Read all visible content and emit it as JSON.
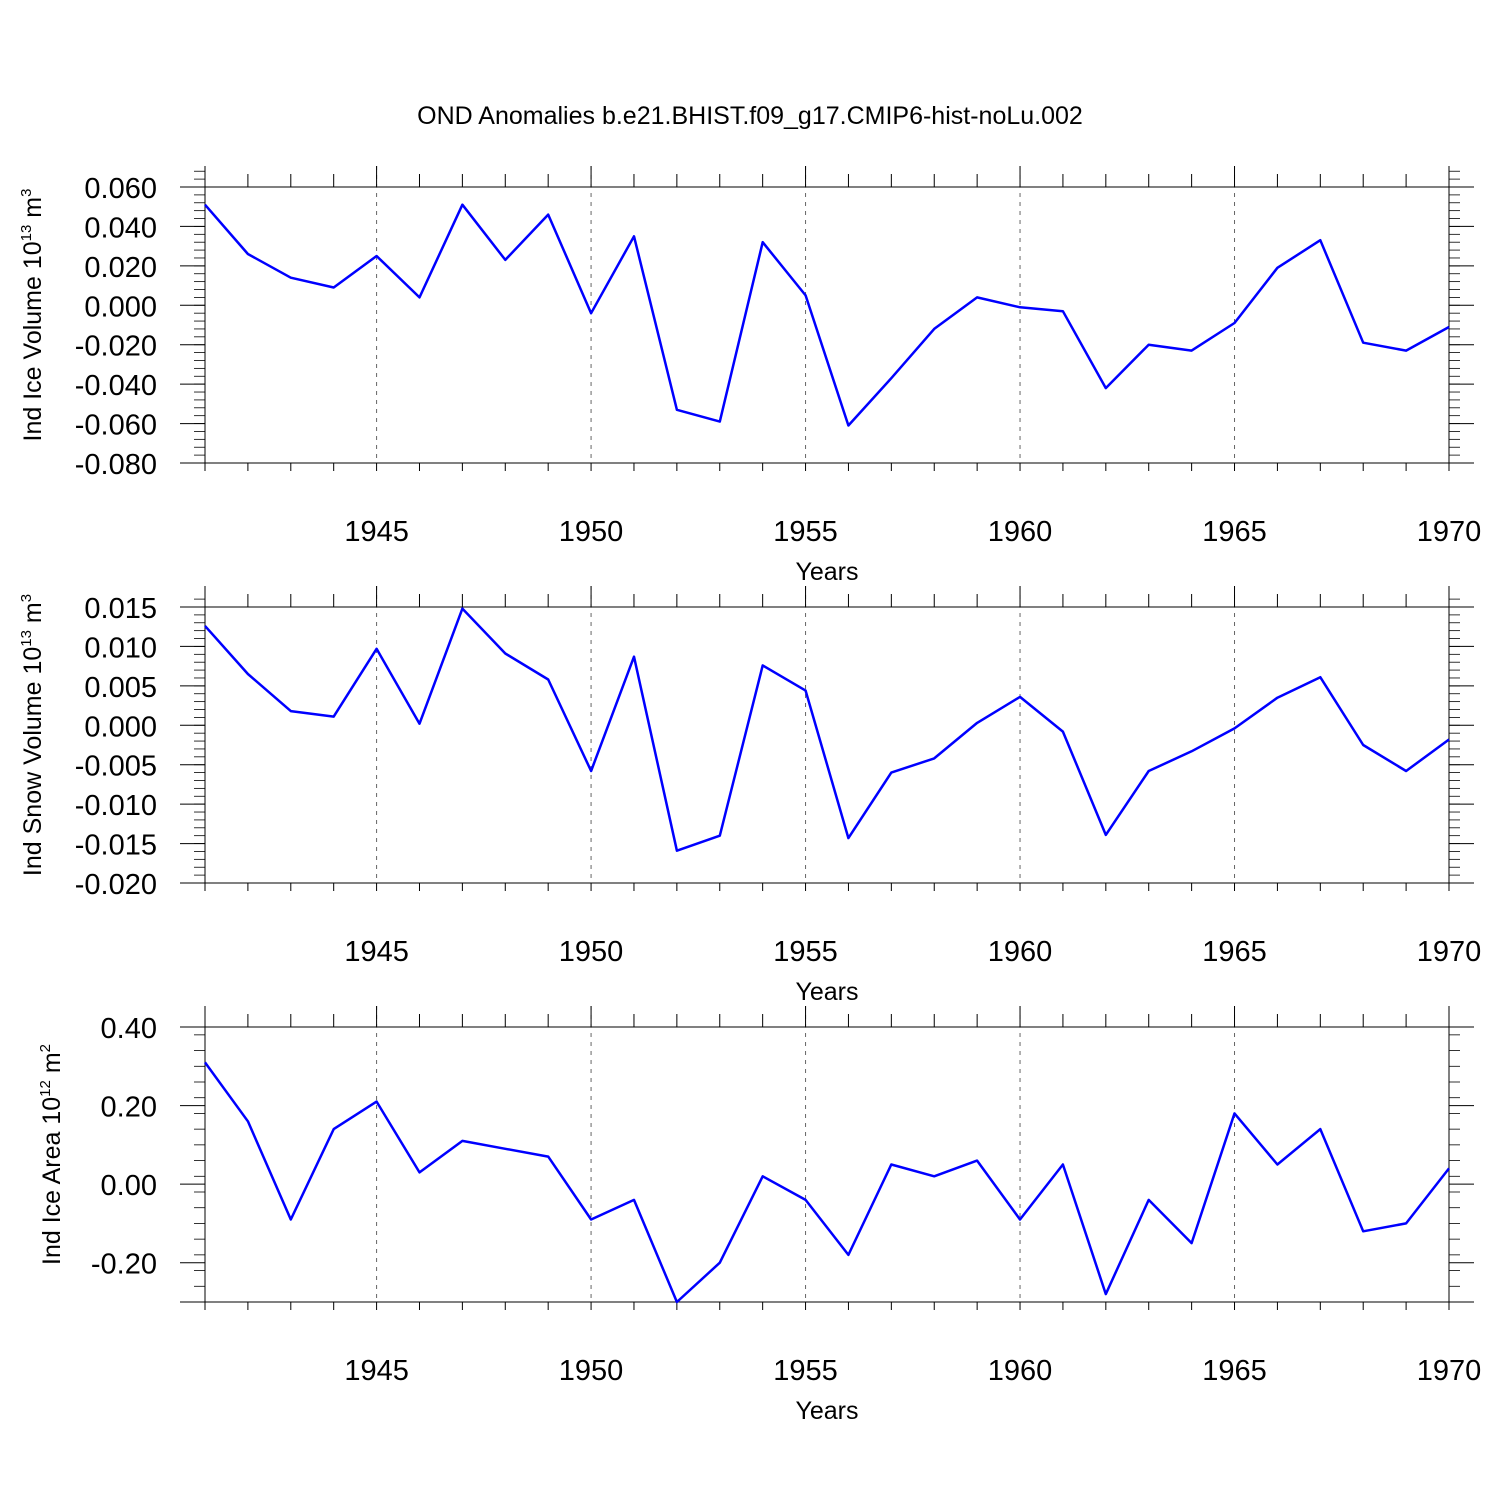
{
  "title": "OND Anomalies b.e21.BHIST.f09_g17.CMIP6-hist-noLu.002",
  "line_color": "#0000ff",
  "chart_data": [
    {
      "type": "line",
      "ylabel_main": "Ind Ice Volume 10",
      "ylabel_exp": "13",
      "ylabel_unit": " m",
      "ylabel_unit_exp": "3",
      "xlabel": "Years",
      "xlim": [
        1941,
        1970
      ],
      "ylim": [
        -0.08,
        0.07
      ],
      "yticks": [
        "0.060",
        "0.040",
        "0.020",
        "0.000",
        "-0.020",
        "-0.040",
        "-0.060",
        "-0.080"
      ],
      "xticks": [
        "1945",
        "1950",
        "1955",
        "1960",
        "1965",
        "1970"
      ],
      "x": [
        1941,
        1942,
        1943,
        1944,
        1945,
        1946,
        1947,
        1948,
        1949,
        1950,
        1951,
        1952,
        1953,
        1954,
        1955,
        1956,
        1957,
        1958,
        1959,
        1960,
        1961,
        1962,
        1963,
        1964,
        1965,
        1966,
        1967,
        1968,
        1969,
        1970
      ],
      "y": [
        0.051,
        0.026,
        0.014,
        0.009,
        0.025,
        0.004,
        0.051,
        0.023,
        0.046,
        -0.004,
        0.035,
        -0.053,
        -0.059,
        0.032,
        0.005,
        -0.061,
        -0.037,
        -0.012,
        0.004,
        -0.001,
        -0.003,
        -0.042,
        -0.02,
        -0.023,
        -0.009,
        0.019,
        0.033,
        -0.019,
        -0.023,
        -0.011
      ]
    },
    {
      "type": "line",
      "ylabel_main": "Ind Snow Volume 10",
      "ylabel_exp": "13",
      "ylabel_unit": " m",
      "ylabel_unit_exp": "3",
      "xlabel": "Years",
      "xlim": [
        1941,
        1970
      ],
      "ylim": [
        -0.02,
        0.0165
      ],
      "yticks": [
        "0.015",
        "0.010",
        "0.005",
        "0.000",
        "-0.005",
        "-0.010",
        "-0.015",
        "-0.020"
      ],
      "xticks": [
        "1945",
        "1950",
        "1955",
        "1960",
        "1965",
        "1970"
      ],
      "x": [
        1941,
        1942,
        1943,
        1944,
        1945,
        1946,
        1947,
        1948,
        1949,
        1950,
        1951,
        1952,
        1953,
        1954,
        1955,
        1956,
        1957,
        1958,
        1959,
        1960,
        1961,
        1962,
        1963,
        1964,
        1965,
        1966,
        1967,
        1968,
        1969,
        1970
      ],
      "y": [
        0.0126,
        0.0065,
        0.0018,
        0.0011,
        0.0097,
        0.0002,
        0.0148,
        0.0091,
        0.0058,
        -0.0058,
        0.0087,
        -0.0159,
        -0.014,
        0.0076,
        0.0044,
        -0.0143,
        -0.006,
        -0.0042,
        0.0003,
        0.0036,
        -0.0008,
        -0.0139,
        -0.0058,
        -0.0033,
        -0.0004,
        0.0035,
        0.0061,
        -0.0025,
        -0.0058,
        -0.0018
      ]
    },
    {
      "type": "line",
      "ylabel_main": "Ind Ice Area 10",
      "ylabel_exp": "12",
      "ylabel_unit": " m",
      "ylabel_unit_exp": "2",
      "xlabel": "Years",
      "xlim": [
        1941,
        1970
      ],
      "ylim": [
        -0.3,
        0.4
      ],
      "yticks": [
        "0.40",
        "0.20",
        "0.00",
        "-0.20"
      ],
      "xticks": [
        "1945",
        "1950",
        "1955",
        "1960",
        "1965",
        "1970"
      ],
      "x": [
        1941,
        1942,
        1943,
        1944,
        1945,
        1946,
        1947,
        1948,
        1949,
        1950,
        1951,
        1952,
        1953,
        1954,
        1955,
        1956,
        1957,
        1958,
        1959,
        1960,
        1961,
        1962,
        1963,
        1964,
        1965,
        1966,
        1967,
        1968,
        1969,
        1970
      ],
      "y": [
        0.31,
        0.16,
        -0.09,
        0.14,
        0.21,
        0.03,
        0.11,
        0.09,
        0.07,
        -0.09,
        -0.04,
        -0.3,
        -0.2,
        0.02,
        -0.04,
        -0.18,
        0.05,
        0.02,
        0.06,
        -0.09,
        0.05,
        -0.28,
        -0.04,
        -0.15,
        0.18,
        0.05,
        0.14,
        -0.12,
        -0.1,
        0.04
      ]
    }
  ]
}
